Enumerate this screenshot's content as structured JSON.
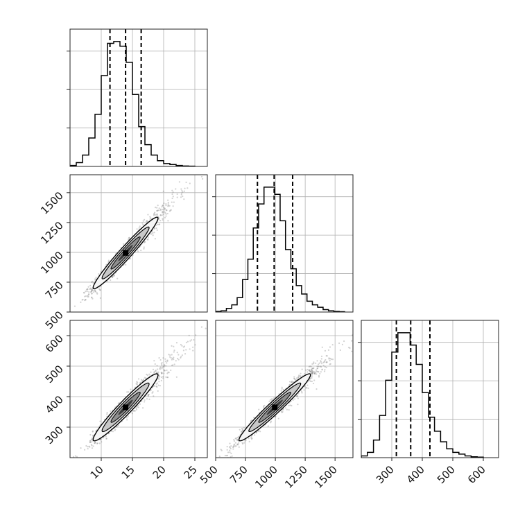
{
  "chart_data": {
    "type": "corner",
    "grid": true,
    "colors": {
      "scatter_points": "#7f7f7f",
      "contour_fill_outer": "#f5f5f5",
      "contour_fill_mid": "#c8c8c8",
      "contour_fill_inner": "#8f8f8f",
      "contour_core": "#3a3a3a",
      "lines": "#000000"
    },
    "parameters": [
      {
        "index": 0,
        "range": [
          5,
          27
        ],
        "ticks": [
          10,
          15,
          20,
          25
        ],
        "quantiles": [
          11.4,
          13.9,
          16.4
        ]
      },
      {
        "index": 1,
        "range": [
          500,
          1650
        ],
        "ticks": [
          500,
          750,
          1000,
          1250,
          1500
        ],
        "quantiles": [
          850,
          990,
          1145
        ]
      },
      {
        "index": 2,
        "range": [
          200,
          650
        ],
        "ticks": [
          300,
          400,
          500,
          600
        ],
        "quantiles": [
          315,
          362,
          425
        ]
      }
    ],
    "histograms": [
      {
        "param": 0,
        "edges": [
          5,
          6,
          7,
          8,
          9,
          10,
          11,
          12,
          13,
          14,
          15,
          16,
          17,
          18,
          19,
          20,
          21,
          22,
          23,
          24,
          25
        ],
        "counts": [
          1,
          4,
          12,
          30,
          55,
          96,
          130,
          132,
          127,
          110,
          76,
          42,
          23,
          12,
          6,
          3,
          2,
          1,
          0.5,
          0.3
        ]
      },
      {
        "param": 1,
        "edges": [
          500,
          545,
          590,
          635,
          680,
          725,
          770,
          815,
          860,
          905,
          950,
          995,
          1040,
          1085,
          1130,
          1175,
          1220,
          1265,
          1310,
          1355,
          1400,
          1445,
          1490,
          1535,
          1580
        ],
        "counts": [
          0.5,
          1,
          3,
          6,
          12,
          27,
          44,
          70,
          90,
          104,
          104,
          98,
          76,
          52,
          36,
          22,
          15,
          9,
          6,
          4,
          2,
          1,
          0.5,
          0.3
        ]
      },
      {
        "param": 2,
        "edges": [
          200,
          220,
          240,
          260,
          280,
          300,
          320,
          340,
          360,
          380,
          400,
          420,
          440,
          460,
          480,
          500,
          520,
          540,
          560,
          580,
          600
        ],
        "counts": [
          1,
          3,
          10,
          24,
          44,
          60,
          71,
          71,
          64,
          53,
          37,
          23,
          15,
          9,
          5,
          3,
          2,
          1,
          0.5,
          0.3
        ]
      }
    ],
    "correlations": [
      {
        "x_param": 0,
        "y_param": 1,
        "centroid": [
          13.9,
          995
        ],
        "spread": [
          2.6,
          150
        ],
        "rho": 0.97
      },
      {
        "x_param": 0,
        "y_param": 2,
        "centroid": [
          13.9,
          365
        ],
        "spread": [
          2.6,
          55
        ],
        "rho": 0.96
      },
      {
        "x_param": 1,
        "y_param": 2,
        "centroid": [
          995,
          365
        ],
        "spread": [
          150,
          55
        ],
        "rho": 0.97
      }
    ]
  }
}
